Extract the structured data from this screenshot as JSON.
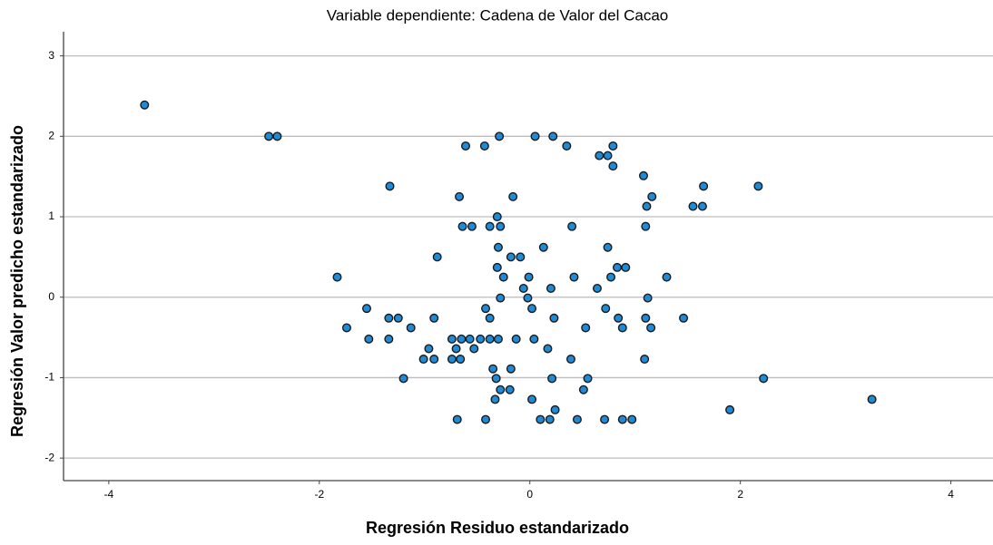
{
  "chart_data": {
    "type": "scatter",
    "title": "Variable dependiente: Cadena de Valor del Cacao",
    "x_label": "Regresión Residuo estandarizado",
    "y_label": "Regresión Valor predicho estandarizado",
    "color": "#1f8bd6",
    "grid": true,
    "xlim": [
      -4.43,
      4.4
    ],
    "ylim": [
      -2.28,
      3.3
    ],
    "xticks": [
      -4,
      -2,
      0,
      2,
      4
    ],
    "yticks": [
      -2,
      -1,
      0,
      1,
      2,
      3
    ],
    "x": [
      -3.66,
      -2.48,
      -2.4,
      -0.29,
      0.05,
      0.22,
      -0.61,
      -0.43,
      0.35,
      0.66,
      0.74,
      0.79,
      0.79,
      1.08,
      -1.33,
      1.65,
      2.17,
      -0.67,
      -0.16,
      1.16,
      1.11,
      1.55,
      1.64,
      -0.31,
      -0.64,
      -0.55,
      -0.38,
      -0.28,
      0.4,
      1.1,
      -0.3,
      0.13,
      0.74,
      -0.88,
      -0.18,
      -0.09,
      -0.31,
      0.83,
      0.91,
      -1.83,
      -0.25,
      -0.01,
      0.42,
      0.77,
      1.3,
      -0.06,
      0.2,
      0.64,
      -0.28,
      -0.02,
      1.12,
      -1.55,
      -0.42,
      0.02,
      0.72,
      -1.34,
      -1.25,
      -0.91,
      -0.38,
      0.23,
      0.84,
      1.1,
      1.46,
      -1.74,
      -1.13,
      0.53,
      0.88,
      1.15,
      -1.53,
      -1.34,
      -0.74,
      -0.65,
      -0.57,
      -0.47,
      -0.38,
      -0.3,
      -0.13,
      0.04,
      -0.96,
      -0.7,
      -0.53,
      0.17,
      -1.01,
      -0.91,
      -0.74,
      -0.66,
      0.39,
      1.09,
      -0.35,
      -0.18,
      -1.2,
      -0.32,
      0.21,
      0.55,
      2.22,
      -0.28,
      -0.19,
      0.51,
      -0.33,
      0.02,
      3.25,
      0.24,
      1.9,
      -0.69,
      -0.42,
      0.1,
      0.19,
      0.45,
      0.71,
      0.88,
      0.97
    ],
    "values": [
      2.39,
      2.0,
      2.0,
      2.0,
      2.0,
      2.0,
      1.88,
      1.88,
      1.88,
      1.76,
      1.76,
      1.88,
      1.63,
      1.51,
      1.38,
      1.38,
      1.38,
      1.25,
      1.25,
      1.25,
      1.13,
      1.13,
      1.13,
      1.0,
      0.88,
      0.88,
      0.88,
      0.88,
      0.88,
      0.88,
      0.62,
      0.62,
      0.62,
      0.5,
      0.5,
      0.5,
      0.37,
      0.37,
      0.37,
      0.25,
      0.25,
      0.25,
      0.25,
      0.25,
      0.25,
      0.11,
      0.11,
      0.11,
      -0.01,
      -0.01,
      -0.01,
      -0.14,
      -0.14,
      -0.14,
      -0.14,
      -0.26,
      -0.26,
      -0.26,
      -0.26,
      -0.26,
      -0.26,
      -0.26,
      -0.26,
      -0.38,
      -0.38,
      -0.38,
      -0.38,
      -0.38,
      -0.52,
      -0.52,
      -0.52,
      -0.52,
      -0.52,
      -0.52,
      -0.52,
      -0.52,
      -0.52,
      -0.52,
      -0.64,
      -0.64,
      -0.64,
      -0.64,
      -0.77,
      -0.77,
      -0.77,
      -0.77,
      -0.77,
      -0.77,
      -0.89,
      -0.89,
      -1.01,
      -1.01,
      -1.01,
      -1.01,
      -1.01,
      -1.15,
      -1.15,
      -1.15,
      -1.27,
      -1.27,
      -1.27,
      -1.4,
      -1.4,
      -1.52,
      -1.52,
      -1.52,
      -1.52,
      -1.52,
      -1.52,
      -1.52,
      -1.52
    ]
  }
}
